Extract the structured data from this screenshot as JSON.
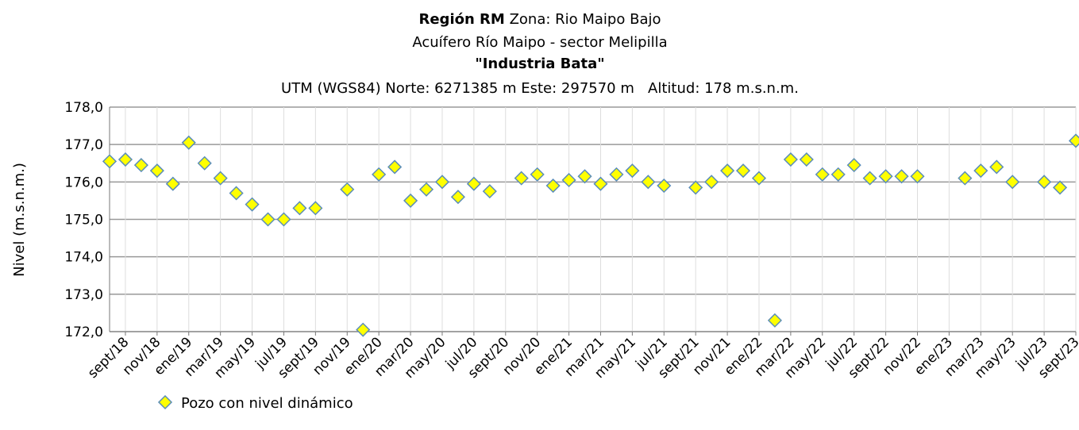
{
  "chart_data": {
    "type": "scatter",
    "title": {
      "bold": "Región RM",
      "rest": "Zona: Rio Maipo Bajo"
    },
    "subtitle": "Acuífero Río Maipo - sector Melipilla",
    "well_name": "\"Industria Bata\"",
    "location": "UTM (WGS84) Norte: 6271385 m Este: 297570 m   Altitud: 178 m.s.n.m.",
    "y_label": "Nivel (m.s.n.m.)",
    "ylim": [
      172,
      178
    ],
    "yticks": [
      {
        "value": 172,
        "label": "172,0"
      },
      {
        "value": 173,
        "label": "173,0"
      },
      {
        "value": 174,
        "label": "174,0"
      },
      {
        "value": 175,
        "label": "175,0"
      },
      {
        "value": 176,
        "label": "176,0"
      },
      {
        "value": 177,
        "label": "177,0"
      },
      {
        "value": 178,
        "label": "178,0"
      }
    ],
    "xlim": [
      "2018-08",
      "2023-09"
    ],
    "xticks": [
      {
        "value": "2018-09",
        "label": "sept/18"
      },
      {
        "value": "2018-11",
        "label": "nov/18"
      },
      {
        "value": "2019-01",
        "label": "ene/19"
      },
      {
        "value": "2019-03",
        "label": "mar/19"
      },
      {
        "value": "2019-05",
        "label": "may/19"
      },
      {
        "value": "2019-07",
        "label": "jul/19"
      },
      {
        "value": "2019-09",
        "label": "sept/19"
      },
      {
        "value": "2019-11",
        "label": "nov/19"
      },
      {
        "value": "2020-01",
        "label": "ene/20"
      },
      {
        "value": "2020-03",
        "label": "mar/20"
      },
      {
        "value": "2020-05",
        "label": "may/20"
      },
      {
        "value": "2020-07",
        "label": "jul/20"
      },
      {
        "value": "2020-09",
        "label": "sept/20"
      },
      {
        "value": "2020-11",
        "label": "nov/20"
      },
      {
        "value": "2021-01",
        "label": "ene/21"
      },
      {
        "value": "2021-03",
        "label": "mar/21"
      },
      {
        "value": "2021-05",
        "label": "may/21"
      },
      {
        "value": "2021-07",
        "label": "jul/21"
      },
      {
        "value": "2021-09",
        "label": "sept/21"
      },
      {
        "value": "2021-11",
        "label": "nov/21"
      },
      {
        "value": "2022-01",
        "label": "ene/22"
      },
      {
        "value": "2022-03",
        "label": "mar/22"
      },
      {
        "value": "2022-05",
        "label": "may/22"
      },
      {
        "value": "2022-07",
        "label": "jul/22"
      },
      {
        "value": "2022-09",
        "label": "sept/22"
      },
      {
        "value": "2022-11",
        "label": "nov/22"
      },
      {
        "value": "2023-01",
        "label": "ene/23"
      },
      {
        "value": "2023-03",
        "label": "mar/23"
      },
      {
        "value": "2023-05",
        "label": "may/23"
      },
      {
        "value": "2023-07",
        "label": "jul/23"
      },
      {
        "value": "2023-09",
        "label": "sept/23"
      }
    ],
    "grid": true,
    "series": [
      {
        "name": "Pozo con nivel dinámico",
        "color": "#ffff00",
        "x": [
          "2018-08",
          "2018-09",
          "2018-10",
          "2018-11",
          "2018-12",
          "2019-01",
          "2019-02",
          "2019-03",
          "2019-04",
          "2019-05",
          "2019-06",
          "2019-07",
          "2019-08",
          "2019-09",
          "2019-11",
          "2019-12",
          "2020-01",
          "2020-02",
          "2020-03",
          "2020-04",
          "2020-05",
          "2020-06",
          "2020-07",
          "2020-08",
          "2020-10",
          "2020-11",
          "2020-12",
          "2021-01",
          "2021-02",
          "2021-03",
          "2021-04",
          "2021-05",
          "2021-06",
          "2021-07",
          "2021-09",
          "2021-10",
          "2021-11",
          "2021-12",
          "2022-01",
          "2022-02",
          "2022-03",
          "2022-04",
          "2022-05",
          "2022-06",
          "2022-07",
          "2022-08",
          "2022-09",
          "2022-10",
          "2022-11",
          "2023-02",
          "2023-03",
          "2023-04",
          "2023-05",
          "2023-07",
          "2023-08",
          "2023-09"
        ],
        "values": [
          176.55,
          176.6,
          176.45,
          176.3,
          175.95,
          177.05,
          176.5,
          176.1,
          175.7,
          175.4,
          175.0,
          175.0,
          175.3,
          175.3,
          175.8,
          172.05,
          176.2,
          176.4,
          175.5,
          175.8,
          176.0,
          175.6,
          175.95,
          175.75,
          176.1,
          176.2,
          175.9,
          176.05,
          176.15,
          175.95,
          176.2,
          176.3,
          176.0,
          175.9,
          175.85,
          176.0,
          176.3,
          176.3,
          176.1,
          172.3,
          176.6,
          176.6,
          176.2,
          176.2,
          176.45,
          176.1,
          176.15,
          176.15,
          176.15,
          176.1,
          176.3,
          176.4,
          176.0,
          176.0,
          175.85,
          177.1
        ]
      }
    ]
  }
}
